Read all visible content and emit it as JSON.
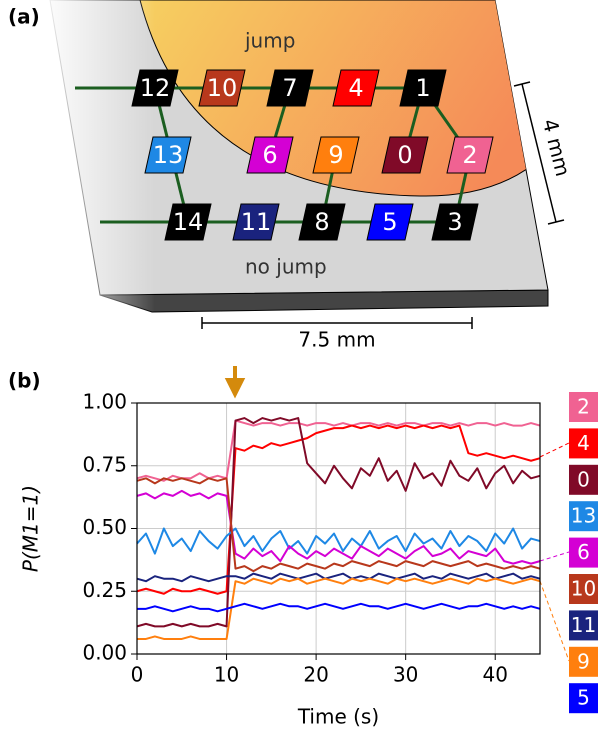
{
  "panel_a": {
    "label": "(a)",
    "regions": [
      "jump",
      "no jump"
    ],
    "dimensions": [
      "4 mm",
      "7.5 mm"
    ],
    "nodes": [
      {
        "label": "12",
        "color": "#000000"
      },
      {
        "label": "10",
        "color": "#b8381c"
      },
      {
        "label": "7",
        "color": "#000000"
      },
      {
        "label": "4",
        "color": "#ff0000"
      },
      {
        "label": "1",
        "color": "#000000"
      },
      {
        "label": "13",
        "color": "#1e88e5"
      },
      {
        "label": "6",
        "color": "#d400d4"
      },
      {
        "label": "9",
        "color": "#ff7f0e"
      },
      {
        "label": "0",
        "color": "#800a28"
      },
      {
        "label": "2",
        "color": "#f06292"
      },
      {
        "label": "14",
        "color": "#000000"
      },
      {
        "label": "11",
        "color": "#1a237e"
      },
      {
        "label": "8",
        "color": "#000000"
      },
      {
        "label": "5",
        "color": "#0000ff"
      },
      {
        "label": "3",
        "color": "#000000"
      }
    ]
  },
  "chart_data": {
    "type": "line",
    "panel_label": "(b)",
    "x_label": "Time (s)",
    "y_label": "P(M1=1)",
    "x": [
      0,
      1,
      2,
      3,
      4,
      5,
      6,
      7,
      8,
      9,
      10,
      11,
      12,
      13,
      14,
      15,
      16,
      17,
      18,
      19,
      20,
      21,
      22,
      23,
      24,
      25,
      26,
      27,
      28,
      29,
      30,
      31,
      32,
      33,
      34,
      35,
      36,
      37,
      38,
      39,
      40,
      41,
      42,
      43,
      44,
      45
    ],
    "xlim": [
      0,
      45
    ],
    "xticks": [
      0,
      10,
      20,
      30,
      40
    ],
    "ylim": [
      0,
      1
    ],
    "yticks": [
      {
        "value": 0,
        "label": "0.00"
      },
      {
        "value": 0.25,
        "label": "0.25"
      },
      {
        "value": 0.5,
        "label": "0.50"
      },
      {
        "value": 0.75,
        "label": "0.75"
      },
      {
        "value": 1,
        "label": "1.00"
      }
    ],
    "grid": true,
    "series": [
      {
        "name": "2",
        "color": "#f06292",
        "values": [
          0.7,
          0.71,
          0.7,
          0.69,
          0.71,
          0.7,
          0.7,
          0.72,
          0.7,
          0.71,
          0.7,
          0.93,
          0.92,
          0.91,
          0.92,
          0.92,
          0.91,
          0.92,
          0.92,
          0.91,
          0.92,
          0.92,
          0.91,
          0.92,
          0.91,
          0.92,
          0.92,
          0.91,
          0.92,
          0.91,
          0.92,
          0.92,
          0.91,
          0.92,
          0.92,
          0.91,
          0.92,
          0.91,
          0.92,
          0.92,
          0.91,
          0.92,
          0.91,
          0.91,
          0.92,
          0.91
        ]
      },
      {
        "name": "4",
        "color": "#ff0000",
        "values": [
          0.25,
          0.26,
          0.25,
          0.24,
          0.26,
          0.25,
          0.25,
          0.26,
          0.25,
          0.24,
          0.25,
          0.82,
          0.81,
          0.83,
          0.82,
          0.84,
          0.83,
          0.84,
          0.85,
          0.86,
          0.88,
          0.89,
          0.9,
          0.9,
          0.91,
          0.9,
          0.91,
          0.9,
          0.91,
          0.9,
          0.91,
          0.9,
          0.91,
          0.9,
          0.91,
          0.9,
          0.91,
          0.8,
          0.79,
          0.8,
          0.79,
          0.78,
          0.79,
          0.78,
          0.77,
          0.78
        ]
      },
      {
        "name": "0",
        "color": "#800a28",
        "values": [
          0.11,
          0.12,
          0.11,
          0.11,
          0.12,
          0.11,
          0.12,
          0.11,
          0.11,
          0.12,
          0.11,
          0.93,
          0.94,
          0.92,
          0.94,
          0.93,
          0.94,
          0.93,
          0.94,
          0.76,
          0.72,
          0.68,
          0.75,
          0.7,
          0.66,
          0.74,
          0.71,
          0.78,
          0.69,
          0.73,
          0.65,
          0.76,
          0.7,
          0.72,
          0.67,
          0.77,
          0.71,
          0.69,
          0.74,
          0.66,
          0.72,
          0.75,
          0.68,
          0.73,
          0.7,
          0.71
        ]
      },
      {
        "name": "13",
        "color": "#1e88e5",
        "values": [
          0.44,
          0.48,
          0.4,
          0.5,
          0.43,
          0.46,
          0.41,
          0.49,
          0.45,
          0.42,
          0.47,
          0.5,
          0.43,
          0.47,
          0.41,
          0.46,
          0.49,
          0.42,
          0.45,
          0.4,
          0.47,
          0.44,
          0.48,
          0.41,
          0.46,
          0.43,
          0.49,
          0.42,
          0.45,
          0.47,
          0.41,
          0.48,
          0.44,
          0.46,
          0.42,
          0.49,
          0.43,
          0.47,
          0.45,
          0.41,
          0.48,
          0.44,
          0.5,
          0.42,
          0.46,
          0.45
        ]
      },
      {
        "name": "6",
        "color": "#d400d4",
        "values": [
          0.63,
          0.64,
          0.62,
          0.64,
          0.63,
          0.65,
          0.63,
          0.64,
          0.62,
          0.64,
          0.63,
          0.4,
          0.38,
          0.42,
          0.39,
          0.41,
          0.37,
          0.43,
          0.4,
          0.38,
          0.41,
          0.39,
          0.42,
          0.4,
          0.38,
          0.43,
          0.41,
          0.39,
          0.42,
          0.4,
          0.38,
          0.41,
          0.43,
          0.39,
          0.4,
          0.42,
          0.38,
          0.41,
          0.4,
          0.39,
          0.42,
          0.37,
          0.36,
          0.37,
          0.36,
          0.37
        ]
      },
      {
        "name": "10",
        "color": "#b8381c",
        "values": [
          0.69,
          0.7,
          0.68,
          0.7,
          0.69,
          0.7,
          0.69,
          0.68,
          0.7,
          0.69,
          0.7,
          0.34,
          0.35,
          0.33,
          0.35,
          0.34,
          0.36,
          0.35,
          0.34,
          0.36,
          0.35,
          0.34,
          0.36,
          0.35,
          0.37,
          0.36,
          0.35,
          0.37,
          0.36,
          0.35,
          0.37,
          0.36,
          0.35,
          0.37,
          0.36,
          0.35,
          0.36,
          0.37,
          0.35,
          0.36,
          0.35,
          0.34,
          0.35,
          0.34,
          0.35,
          0.34
        ]
      },
      {
        "name": "11",
        "color": "#1a237e",
        "values": [
          0.3,
          0.29,
          0.31,
          0.3,
          0.3,
          0.29,
          0.31,
          0.3,
          0.29,
          0.3,
          0.31,
          0.31,
          0.3,
          0.32,
          0.31,
          0.3,
          0.32,
          0.31,
          0.3,
          0.31,
          0.32,
          0.3,
          0.31,
          0.32,
          0.3,
          0.31,
          0.3,
          0.32,
          0.31,
          0.3,
          0.31,
          0.32,
          0.3,
          0.31,
          0.3,
          0.32,
          0.31,
          0.3,
          0.31,
          0.32,
          0.3,
          0.31,
          0.32,
          0.3,
          0.31,
          0.3
        ]
      },
      {
        "name": "9",
        "color": "#ff7f0e",
        "values": [
          0.06,
          0.06,
          0.07,
          0.06,
          0.06,
          0.06,
          0.07,
          0.06,
          0.06,
          0.06,
          0.06,
          0.29,
          0.28,
          0.3,
          0.29,
          0.28,
          0.3,
          0.29,
          0.3,
          0.28,
          0.29,
          0.3,
          0.29,
          0.28,
          0.3,
          0.29,
          0.3,
          0.29,
          0.28,
          0.3,
          0.29,
          0.3,
          0.29,
          0.28,
          0.29,
          0.3,
          0.29,
          0.28,
          0.3,
          0.29,
          0.3,
          0.29,
          0.28,
          0.29,
          0.3,
          0.29
        ]
      },
      {
        "name": "5",
        "color": "#0000ff",
        "values": [
          0.18,
          0.18,
          0.19,
          0.18,
          0.17,
          0.18,
          0.19,
          0.18,
          0.18,
          0.17,
          0.18,
          0.19,
          0.2,
          0.19,
          0.18,
          0.19,
          0.2,
          0.19,
          0.19,
          0.18,
          0.19,
          0.2,
          0.19,
          0.18,
          0.19,
          0.2,
          0.19,
          0.19,
          0.18,
          0.19,
          0.2,
          0.19,
          0.18,
          0.19,
          0.2,
          0.19,
          0.18,
          0.19,
          0.19,
          0.2,
          0.19,
          0.18,
          0.19,
          0.18,
          0.19,
          0.18
        ]
      }
    ]
  }
}
